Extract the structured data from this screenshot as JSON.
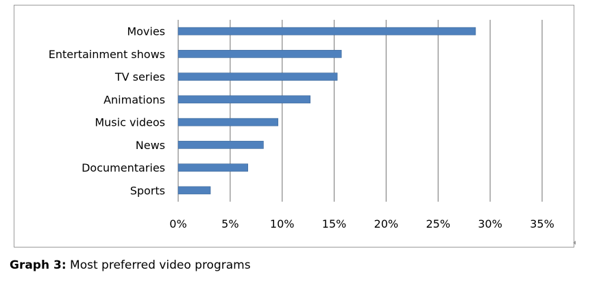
{
  "caption": {
    "label": "Graph 3:",
    "text": " Most preferred video programs"
  },
  "colors": {
    "bar": "#4f81bd",
    "bar_edge": "#3a6597",
    "grid": "#868686",
    "text": "#000000"
  },
  "chart_data": {
    "type": "bar",
    "orientation": "horizontal",
    "categories": [
      "Movies",
      "Entertainment shows",
      "TV series",
      "Animations",
      "Music videos",
      "News",
      "Documentaries",
      "Sports"
    ],
    "values": [
      28.6,
      15.7,
      15.3,
      12.7,
      9.6,
      8.2,
      6.7,
      3.1
    ],
    "xlim": [
      0,
      35
    ],
    "xticks": [
      0,
      5,
      10,
      15,
      20,
      25,
      30,
      35
    ],
    "xtick_labels": [
      "0%",
      "5%",
      "10%",
      "15%",
      "20%",
      "25%",
      "30%",
      "35%"
    ],
    "grid": "vertical",
    "legend": "none"
  }
}
